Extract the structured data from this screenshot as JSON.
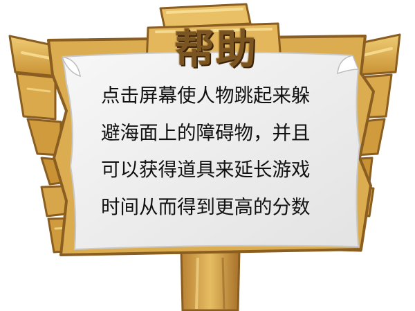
{
  "help_panel": {
    "title": "帮助",
    "lines": [
      "点击屏幕使人物跳起来躲",
      "避海面上的障碍物，并且",
      "可以获得道具来延长游戏",
      "时间从而得到更高的分数"
    ]
  },
  "colors": {
    "wood_light": "#e2b85a",
    "wood_mid": "#cf9a3c",
    "wood_dark": "#9b6a25",
    "paper": "#eeeeee",
    "title": "#7a5522",
    "text": "#111111"
  }
}
